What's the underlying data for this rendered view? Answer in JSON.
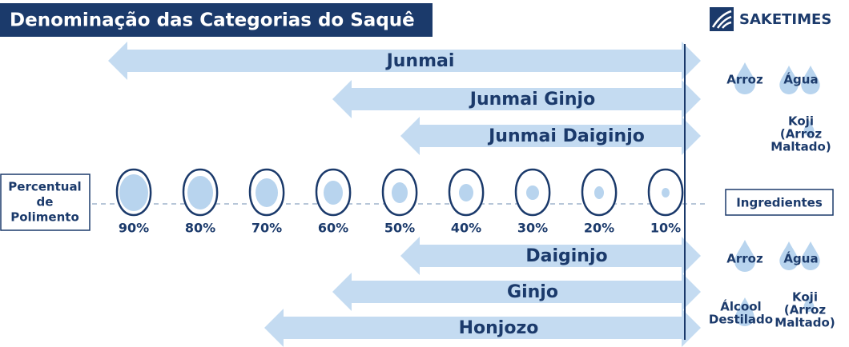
{
  "header": {
    "title": "Denominação das Categorias do Saquê",
    "logo": "SAKETIMES"
  },
  "arrows": [
    {
      "label": "Junmai"
    },
    {
      "label": "Junmai Ginjo"
    },
    {
      "label": "Junmai Daiginjo"
    },
    {
      "label": "Daiginjo"
    },
    {
      "label": "Ginjo"
    },
    {
      "label": "Honjozo"
    }
  ],
  "axis_label": [
    "Percentual",
    "de",
    "Polimento"
  ],
  "grains": [
    "90%",
    "80%",
    "70%",
    "60%",
    "50%",
    "40%",
    "30%",
    "20%",
    "10%"
  ],
  "ingredients_label": "Ingredientes",
  "ingredients_top": [
    [
      "Arroz"
    ],
    [
      "Água"
    ],
    [
      "Koji",
      "(Arroz",
      "Maltado)"
    ]
  ],
  "ingredients_bottom": [
    [
      "Arroz"
    ],
    [
      "Água"
    ],
    [
      "Álcool",
      "Destilado"
    ],
    [
      "Koji",
      "(Arroz",
      "Maltado)"
    ]
  ]
}
